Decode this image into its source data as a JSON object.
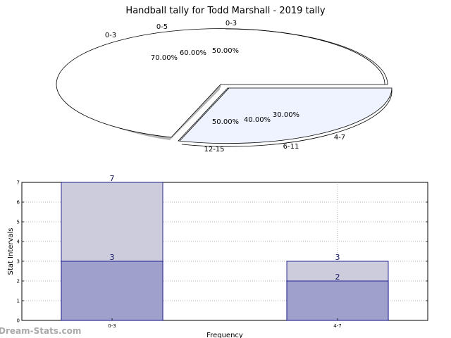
{
  "title": "Handball tally for Todd Marshall - 2019 tally",
  "watermark": "Dream-Stats.com",
  "colors": {
    "pie_slice_a": "#ffffff",
    "pie_slice_b": "#eef3ff",
    "bar_back": "#ccccdd",
    "bar_front": "#a0a0cc",
    "bar_edge": "#000080"
  },
  "chart_data": [
    {
      "type": "pie",
      "style": "3d-exploded",
      "slices": [
        {
          "name": "0-3",
          "outer_labels": [
            "0-3",
            "0-5",
            "0-3"
          ],
          "percent_labels": [
            "70.00%",
            "60.00%",
            "50.00%"
          ]
        },
        {
          "name": "4-7",
          "outer_labels": [
            "12-15",
            "6-11",
            "4-7"
          ],
          "percent_labels": [
            "50.00%",
            "40.00%",
            "30.00%"
          ]
        }
      ]
    },
    {
      "type": "bar",
      "categories": [
        "0-3",
        "4-7"
      ],
      "series": [
        {
          "values": [
            7,
            3
          ]
        },
        {
          "values": [
            3,
            2
          ]
        }
      ],
      "xlabel": "Frequency",
      "ylabel": "Stat Intervals",
      "ylim": [
        0,
        7
      ],
      "yticks": [
        "0",
        "1",
        "2",
        "3",
        "4",
        "5",
        "6",
        "7"
      ],
      "grid": true
    }
  ]
}
